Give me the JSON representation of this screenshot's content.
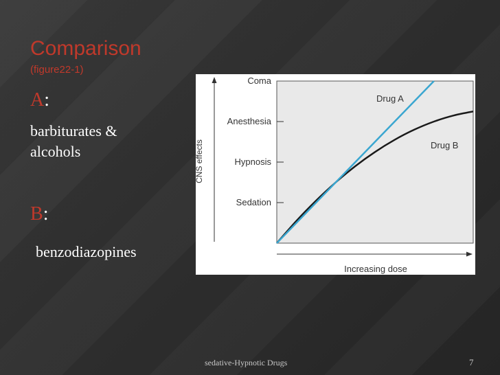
{
  "slide": {
    "title": "Comparison",
    "subtitle": "(figure22-1)",
    "a_letter": "A",
    "a_text": "barbiturates & alcohols",
    "b_letter": "B",
    "b_text": "benzodiazopines",
    "colon": ":"
  },
  "footer": {
    "text": "sedative-Hypnotic Drugs",
    "page_number": "7"
  },
  "colors": {
    "accent": "#c0392b",
    "drug_a": "#3aa6d0",
    "drug_b": "#1a1a1a"
  },
  "chart_data": {
    "type": "line",
    "xlabel": "Increasing dose",
    "ylabel": "CNS effects",
    "y_ticks": [
      "Sedation",
      "Hypnosis",
      "Anesthesia",
      "Coma"
    ],
    "y_tick_values": [
      1,
      2,
      3,
      4
    ],
    "xlim": [
      0,
      10
    ],
    "ylim": [
      0,
      4
    ],
    "series": [
      {
        "name": "Drug A",
        "x": [
          0,
          8.0
        ],
        "y": [
          0,
          4.0
        ]
      },
      {
        "name": "Drug B",
        "x": [
          0,
          1,
          2,
          3,
          4,
          5,
          6,
          7,
          8,
          9,
          10
        ],
        "y": [
          0,
          0.55,
          1.05,
          1.5,
          1.9,
          2.25,
          2.55,
          2.8,
          3.0,
          3.15,
          3.25
        ]
      }
    ]
  }
}
